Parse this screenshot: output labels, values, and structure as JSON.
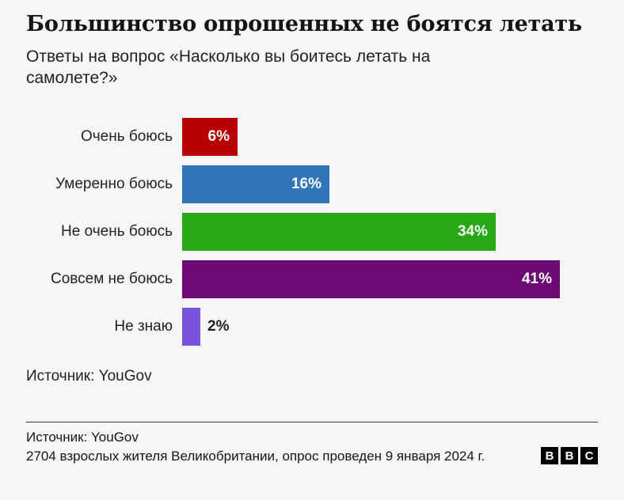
{
  "title": "Большинство опрошенных не боятся летать",
  "subtitle": "Ответы на вопрос «Насколько вы боитесь летать на самолете?»",
  "chart_data": {
    "type": "bar",
    "orientation": "horizontal",
    "title": "Большинство опрошенных не боятся летать",
    "subtitle": "Ответы на вопрос «Насколько вы боитесь летать на самолете?»",
    "categories": [
      "Очень боюсь",
      "Умеренно боюсь",
      "Не очень боюсь",
      "Совсем не боюсь",
      "Не знаю"
    ],
    "values": [
      6,
      16,
      34,
      41,
      2
    ],
    "value_labels": [
      "6%",
      "16%",
      "34%",
      "41%",
      "2%"
    ],
    "colors": [
      "#b80000",
      "#3076b8",
      "#28a814",
      "#6b0a72",
      "#7a52e0"
    ],
    "xlim": [
      0,
      41
    ],
    "grid": "off",
    "legend": "none",
    "value_label_position": [
      "inside",
      "inside",
      "inside",
      "inside",
      "outside"
    ],
    "source": "Источник: YouGov"
  },
  "source_note": "Источник: YouGov",
  "footer": {
    "source_line": "Источник: YouGov",
    "note_line": "2704 взрослых жителя Великобритании, опрос проведен 9 января 2024 г.",
    "logo_letters": [
      "B",
      "B",
      "C"
    ]
  }
}
